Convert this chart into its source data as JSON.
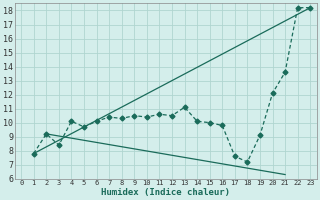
{
  "xlabel": "Humidex (Indice chaleur)",
  "bg_color": "#d4eeeb",
  "line_color": "#1a6b5a",
  "grid_color": "#b0d5d0",
  "xlim": [
    -0.5,
    23.5
  ],
  "ylim": [
    6,
    18.5
  ],
  "yticks": [
    6,
    7,
    8,
    9,
    10,
    11,
    12,
    13,
    14,
    15,
    16,
    17,
    18
  ],
  "xticks": [
    0,
    1,
    2,
    3,
    4,
    5,
    6,
    7,
    8,
    9,
    10,
    11,
    12,
    13,
    14,
    15,
    16,
    17,
    18,
    19,
    20,
    21,
    22,
    23
  ],
  "line1_x": [
    1,
    2,
    3,
    4,
    5,
    6,
    7,
    8,
    9,
    10,
    11,
    12,
    13,
    14,
    15,
    16,
    17,
    18,
    19,
    20,
    21,
    22,
    23
  ],
  "line1_y": [
    7.8,
    9.2,
    8.4,
    10.1,
    9.7,
    10.1,
    10.4,
    10.3,
    10.5,
    10.4,
    10.6,
    10.5,
    11.1,
    10.1,
    10.0,
    9.8,
    7.6,
    7.2,
    9.1,
    12.1,
    13.6,
    18.2,
    18.2
  ],
  "line2_x": [
    1,
    23
  ],
  "line2_y": [
    7.8,
    18.2
  ],
  "line3_x": [
    2,
    21
  ],
  "line3_y": [
    9.2,
    6.3
  ],
  "markersize": 2.5,
  "linewidth": 0.9
}
